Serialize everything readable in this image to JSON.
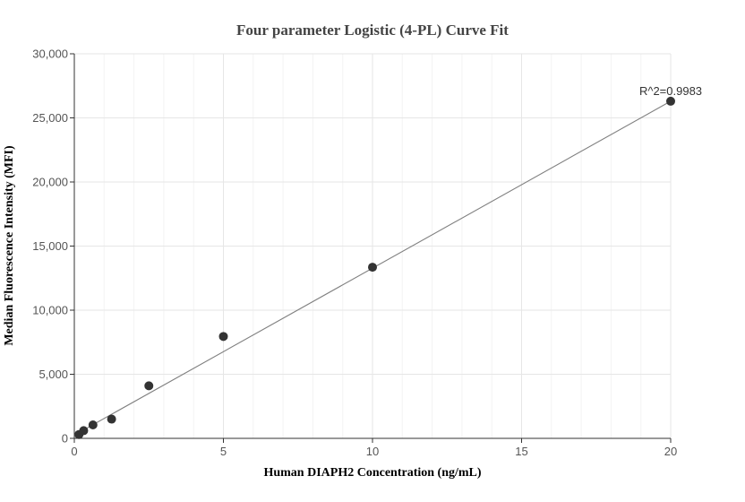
{
  "chart_data": {
    "type": "scatter",
    "title": "Four parameter Logistic (4-PL) Curve Fit",
    "xlabel": "Human DIAPH2 Concentration (ng/mL)",
    "ylabel": "Median Fluorescence Intensity (MFI)",
    "xlim": [
      0,
      20
    ],
    "ylim": [
      0,
      30000
    ],
    "x_ticks": [
      0,
      5,
      10,
      15,
      20
    ],
    "x_tick_labels": [
      "0",
      "5",
      "10",
      "15",
      "20"
    ],
    "y_ticks": [
      0,
      5000,
      10000,
      15000,
      20000,
      25000,
      30000
    ],
    "y_tick_labels": [
      "0",
      "5,000",
      "10,000",
      "15,000",
      "20,000",
      "25,000",
      "30,000"
    ],
    "grid": true,
    "points": {
      "x": [
        0.156,
        0.313,
        0.625,
        1.25,
        2.5,
        5,
        10,
        20
      ],
      "y": [
        300,
        600,
        1050,
        1500,
        4100,
        7950,
        13350,
        26300
      ]
    },
    "fit_line": {
      "x": [
        0,
        20
      ],
      "y": [
        250,
        26300
      ]
    },
    "annotation": "R^2=0.9983",
    "colors": {
      "points": "#333333",
      "fit_line": "#808080",
      "grid": "#e6e6e6"
    }
  }
}
